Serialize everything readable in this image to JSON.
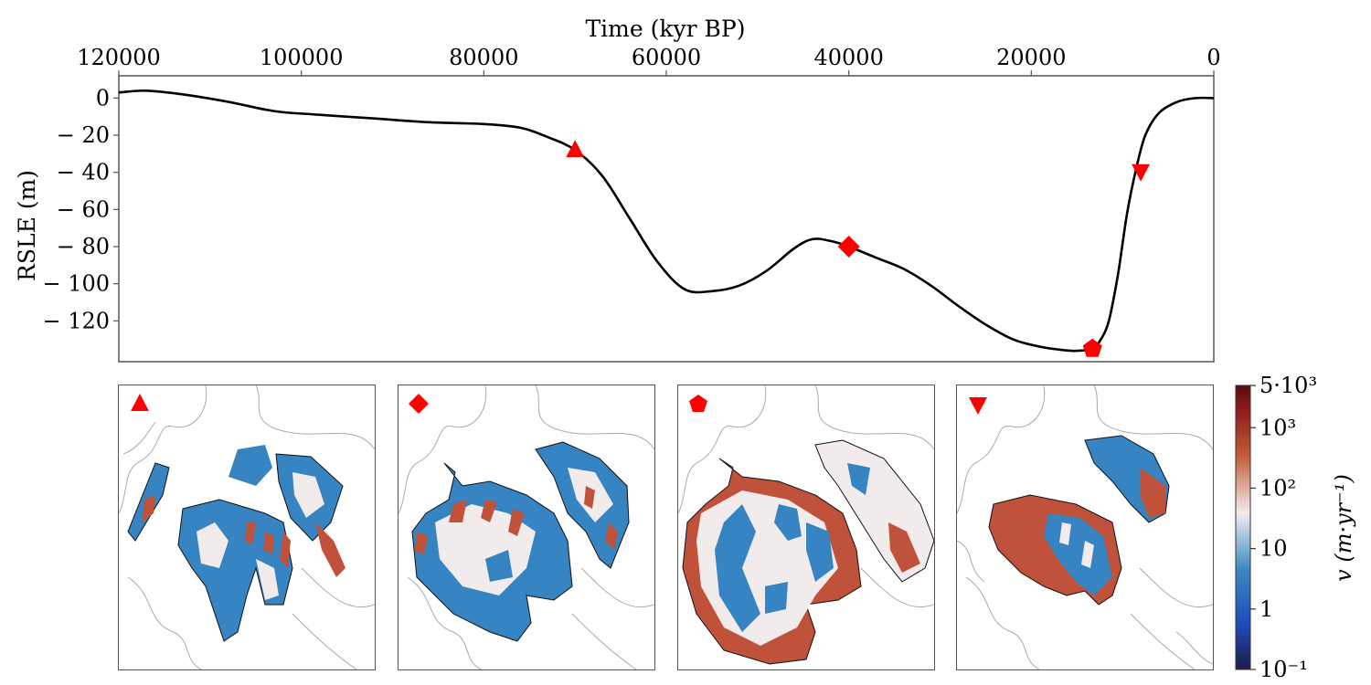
{
  "chart_data": [
    {
      "type": "line",
      "title": "",
      "xlabel": "Time (kyr BP)",
      "ylabel": "RSLE (m)",
      "xlim": [
        120000,
        0
      ],
      "ylim": [
        -142,
        12
      ],
      "x_axis_position": "top",
      "x_ticks": [
        120000,
        100000,
        80000,
        60000,
        40000,
        20000,
        0
      ],
      "y_ticks": [
        0,
        -20,
        -40,
        -60,
        -80,
        -100,
        -120
      ],
      "x_tick_labels": [
        "120000",
        "100000",
        "80000",
        "60000",
        "40000",
        "20000",
        "0"
      ],
      "y_tick_labels": [
        "0",
        "− 20",
        "− 40",
        "− 60",
        "− 80",
        "− 100",
        "− 120"
      ],
      "grid": false,
      "series": [
        {
          "color": "#000000",
          "x": [
            120000,
            117000,
            113000,
            108000,
            103000,
            98000,
            92000,
            86000,
            80000,
            76000,
            73000,
            70000,
            67000,
            64000,
            61000,
            58000,
            55000,
            52000,
            49000,
            46000,
            44000,
            42000,
            40000,
            37000,
            34000,
            31000,
            28000,
            25000,
            22000,
            19000,
            16000,
            14500,
            13300,
            12500,
            11500,
            10500,
            9500,
            8500,
            7500,
            6000,
            4000,
            2000,
            0
          ],
          "y": [
            3,
            4,
            2,
            -2,
            -7,
            -9,
            -11,
            -13,
            -14,
            -16,
            -21,
            -28,
            -42,
            -65,
            -88,
            -103,
            -104,
            -101,
            -93,
            -81,
            -76,
            -77,
            -80,
            -86,
            -92,
            -101,
            -112,
            -122,
            -130,
            -134,
            -136,
            -136,
            -135,
            -131,
            -120,
            -95,
            -62,
            -38,
            -20,
            -8,
            -2,
            0,
            0
          ]
        }
      ],
      "markers": [
        {
          "shape": "triangle-up",
          "x": 70000,
          "y": -28,
          "color": "#ff0000"
        },
        {
          "shape": "diamond",
          "x": 40000,
          "y": -80,
          "color": "#ff0000"
        },
        {
          "shape": "pentagon",
          "x": 13300,
          "y": -135,
          "color": "#ff0000"
        },
        {
          "shape": "triangle-down",
          "x": 8000,
          "y": -40,
          "color": "#ff0000"
        }
      ]
    },
    {
      "type": "heatmap",
      "panels": [
        {
          "marker": "triangle-up"
        },
        {
          "marker": "diamond"
        },
        {
          "marker": "pentagon"
        },
        {
          "marker": "triangle-down"
        }
      ],
      "colorbar": {
        "label": "v (m·yr⁻¹)",
        "scale": "log",
        "range": [
          0.1,
          5000
        ],
        "tick_labels": [
          "5·10³",
          "10³",
          "10²",
          "10",
          "1",
          "10⁻¹"
        ],
        "tick_values": [
          5000,
          1000,
          100,
          10,
          1,
          0.1
        ],
        "colors": [
          "#1c1a4b",
          "#1f4fbf",
          "#3b87c0",
          "#f2eded",
          "#c45d3c",
          "#8c1a1a",
          "#5a0a10"
        ]
      },
      "field_colors": {
        "slow": "#3684c2",
        "moderate": "#f1eceb",
        "fast": "#c0513a",
        "outline": "#111111",
        "coast": "#a9a9a9"
      }
    }
  ]
}
